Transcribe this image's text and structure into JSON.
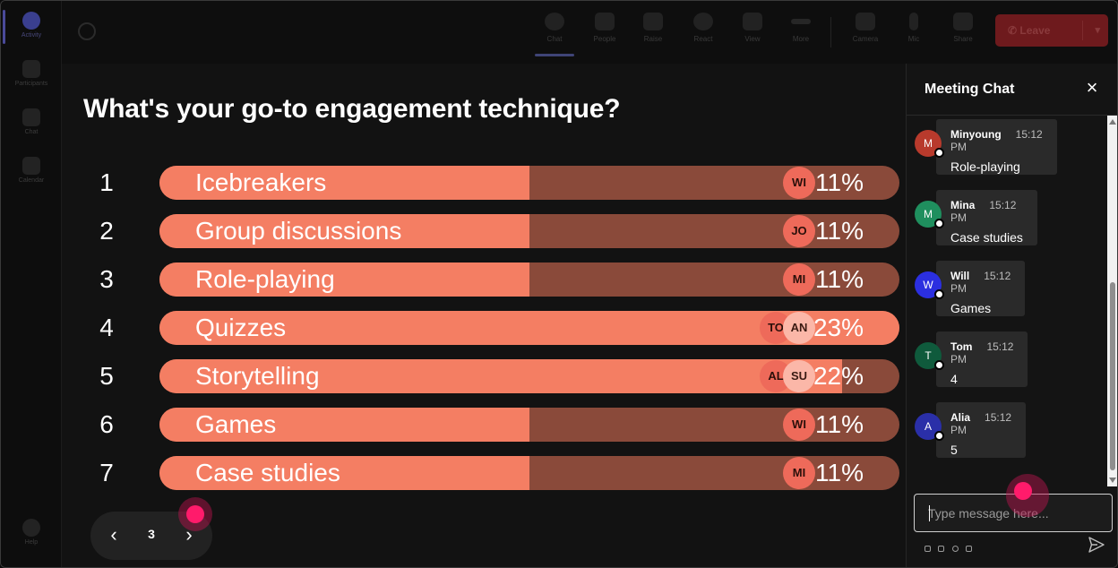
{
  "rail": {
    "items": [
      {
        "label": "Activity",
        "active": true
      },
      {
        "label": "Participants",
        "active": false
      },
      {
        "label": "Chat",
        "active": false
      },
      {
        "label": "Calendar",
        "active": false
      }
    ],
    "help_label": "Help"
  },
  "toolbar": {
    "buttons": [
      {
        "label": "Chat",
        "icon": "chat-icon",
        "active": true
      },
      {
        "label": "People",
        "icon": "people-icon",
        "active": false
      },
      {
        "label": "Raise",
        "icon": "hand-icon",
        "active": false
      },
      {
        "label": "React",
        "icon": "smile-icon",
        "active": false
      },
      {
        "label": "View",
        "icon": "grid-icon",
        "active": false
      },
      {
        "label": "More",
        "icon": "more-icon",
        "active": false
      },
      {
        "label": "Camera",
        "icon": "camera-icon",
        "active": false
      },
      {
        "label": "Mic",
        "icon": "mic-icon",
        "active": false
      },
      {
        "label": "Share",
        "icon": "share-icon",
        "active": false
      }
    ],
    "leave_label": "Leave"
  },
  "poll": {
    "title": "What's your go-to engagement technique?",
    "options": [
      {
        "rank": "1",
        "label": "Icebreakers",
        "percent": 11,
        "percent_text": "11%",
        "voters": [
          "WI"
        ]
      },
      {
        "rank": "2",
        "label": "Group discussions",
        "percent": 11,
        "percent_text": "11%",
        "voters": [
          "JO"
        ]
      },
      {
        "rank": "3",
        "label": "Role-playing",
        "percent": 11,
        "percent_text": "11%",
        "voters": [
          "MI"
        ]
      },
      {
        "rank": "4",
        "label": "Quizzes",
        "percent": 23,
        "percent_text": "23%",
        "voters": [
          "TO",
          "AN"
        ]
      },
      {
        "rank": "5",
        "label": "Storytelling",
        "percent": 22,
        "percent_text": "22%",
        "voters": [
          "AL",
          "SU"
        ]
      },
      {
        "rank": "6",
        "label": "Games",
        "percent": 11,
        "percent_text": "11%",
        "voters": [
          "WI"
        ]
      },
      {
        "rank": "7",
        "label": "Case studies",
        "percent": 11,
        "percent_text": "11%",
        "voters": [
          "MI"
        ]
      }
    ],
    "pager": {
      "page": "3"
    }
  },
  "chat": {
    "title": "Meeting Chat",
    "messages": [
      {
        "initial": "M",
        "name": "Minyoung",
        "time": "15:12 PM",
        "text": "Role-playing",
        "color": "#b83a2c"
      },
      {
        "initial": "M",
        "name": "Mina",
        "time": "15:12 PM",
        "text": "Case studies",
        "color": "#1f8f5e"
      },
      {
        "initial": "W",
        "name": "Will",
        "time": "15:12 PM",
        "text": "Games",
        "color": "#2b2fe0"
      },
      {
        "initial": "T",
        "name": "Tom",
        "time": "15:12 PM",
        "text": "4",
        "color": "#0f5a3c"
      },
      {
        "initial": "A",
        "name": "Alia",
        "time": "15:12 PM",
        "text": "5",
        "color": "#2a2fa8"
      }
    ],
    "composer_placeholder": "Type message here..."
  },
  "colors": {
    "bar_fill": "#f47e63",
    "bar_track": "#8a4a3a",
    "click_indicator": "#ff1b6b"
  }
}
